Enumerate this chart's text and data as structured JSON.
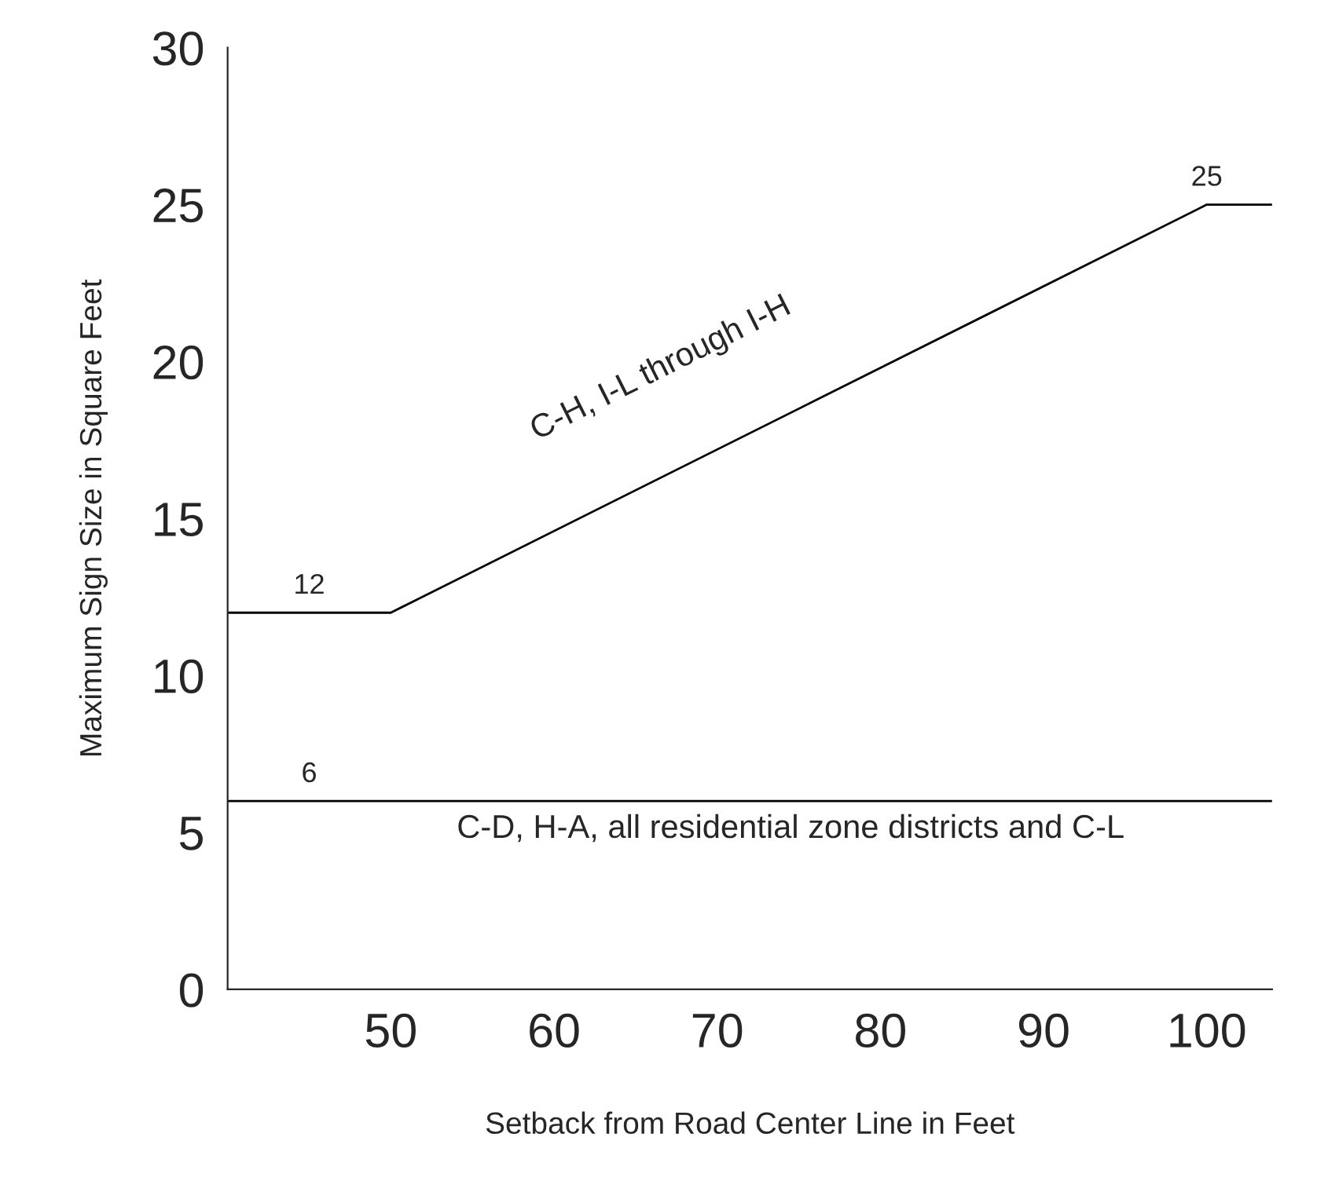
{
  "chart_data": {
    "type": "line",
    "xlabel": "Setback from Road Center Line in Feet",
    "ylabel": "Maximum Sign Size in Square Feet",
    "xlim": [
      40,
      104
    ],
    "xticks": [
      50,
      60,
      70,
      80,
      90,
      100
    ],
    "ylim": [
      0,
      30
    ],
    "yticks": [
      0,
      5,
      10,
      15,
      20,
      25,
      30
    ],
    "grid": false,
    "legend": false,
    "series": [
      {
        "name": "C-H, I-L through I-H",
        "color": "#000000",
        "x": [
          40,
          45,
          50,
          100,
          104
        ],
        "values": [
          12,
          12,
          12,
          25,
          25
        ],
        "value_labels": [
          null,
          "12",
          null,
          "25",
          null
        ]
      },
      {
        "name": "C-D, H-A, all residential zone districts and C-L",
        "color": "#000000",
        "x": [
          40,
          45,
          104
        ],
        "values": [
          6,
          6,
          6
        ],
        "value_labels": [
          null,
          "6",
          null
        ]
      }
    ]
  }
}
